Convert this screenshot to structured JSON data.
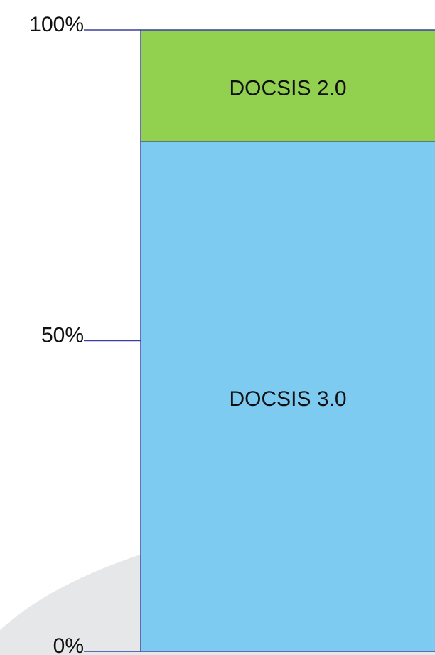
{
  "chart_data": {
    "type": "stacked_bar",
    "categories": [
      null
    ],
    "series": [
      {
        "name": "DOCSIS 3.0",
        "color": "#7ecbf2",
        "values": [
          82
        ]
      },
      {
        "name": "DOCSIS 2.0",
        "color": "#92d050",
        "values": [
          18
        ]
      }
    ],
    "ylim": [
      0,
      100
    ],
    "yticks": [
      {
        "value": 0,
        "label": "0%"
      },
      {
        "value": 50,
        "label": "50%"
      },
      {
        "value": 100,
        "label": "100%"
      }
    ]
  }
}
